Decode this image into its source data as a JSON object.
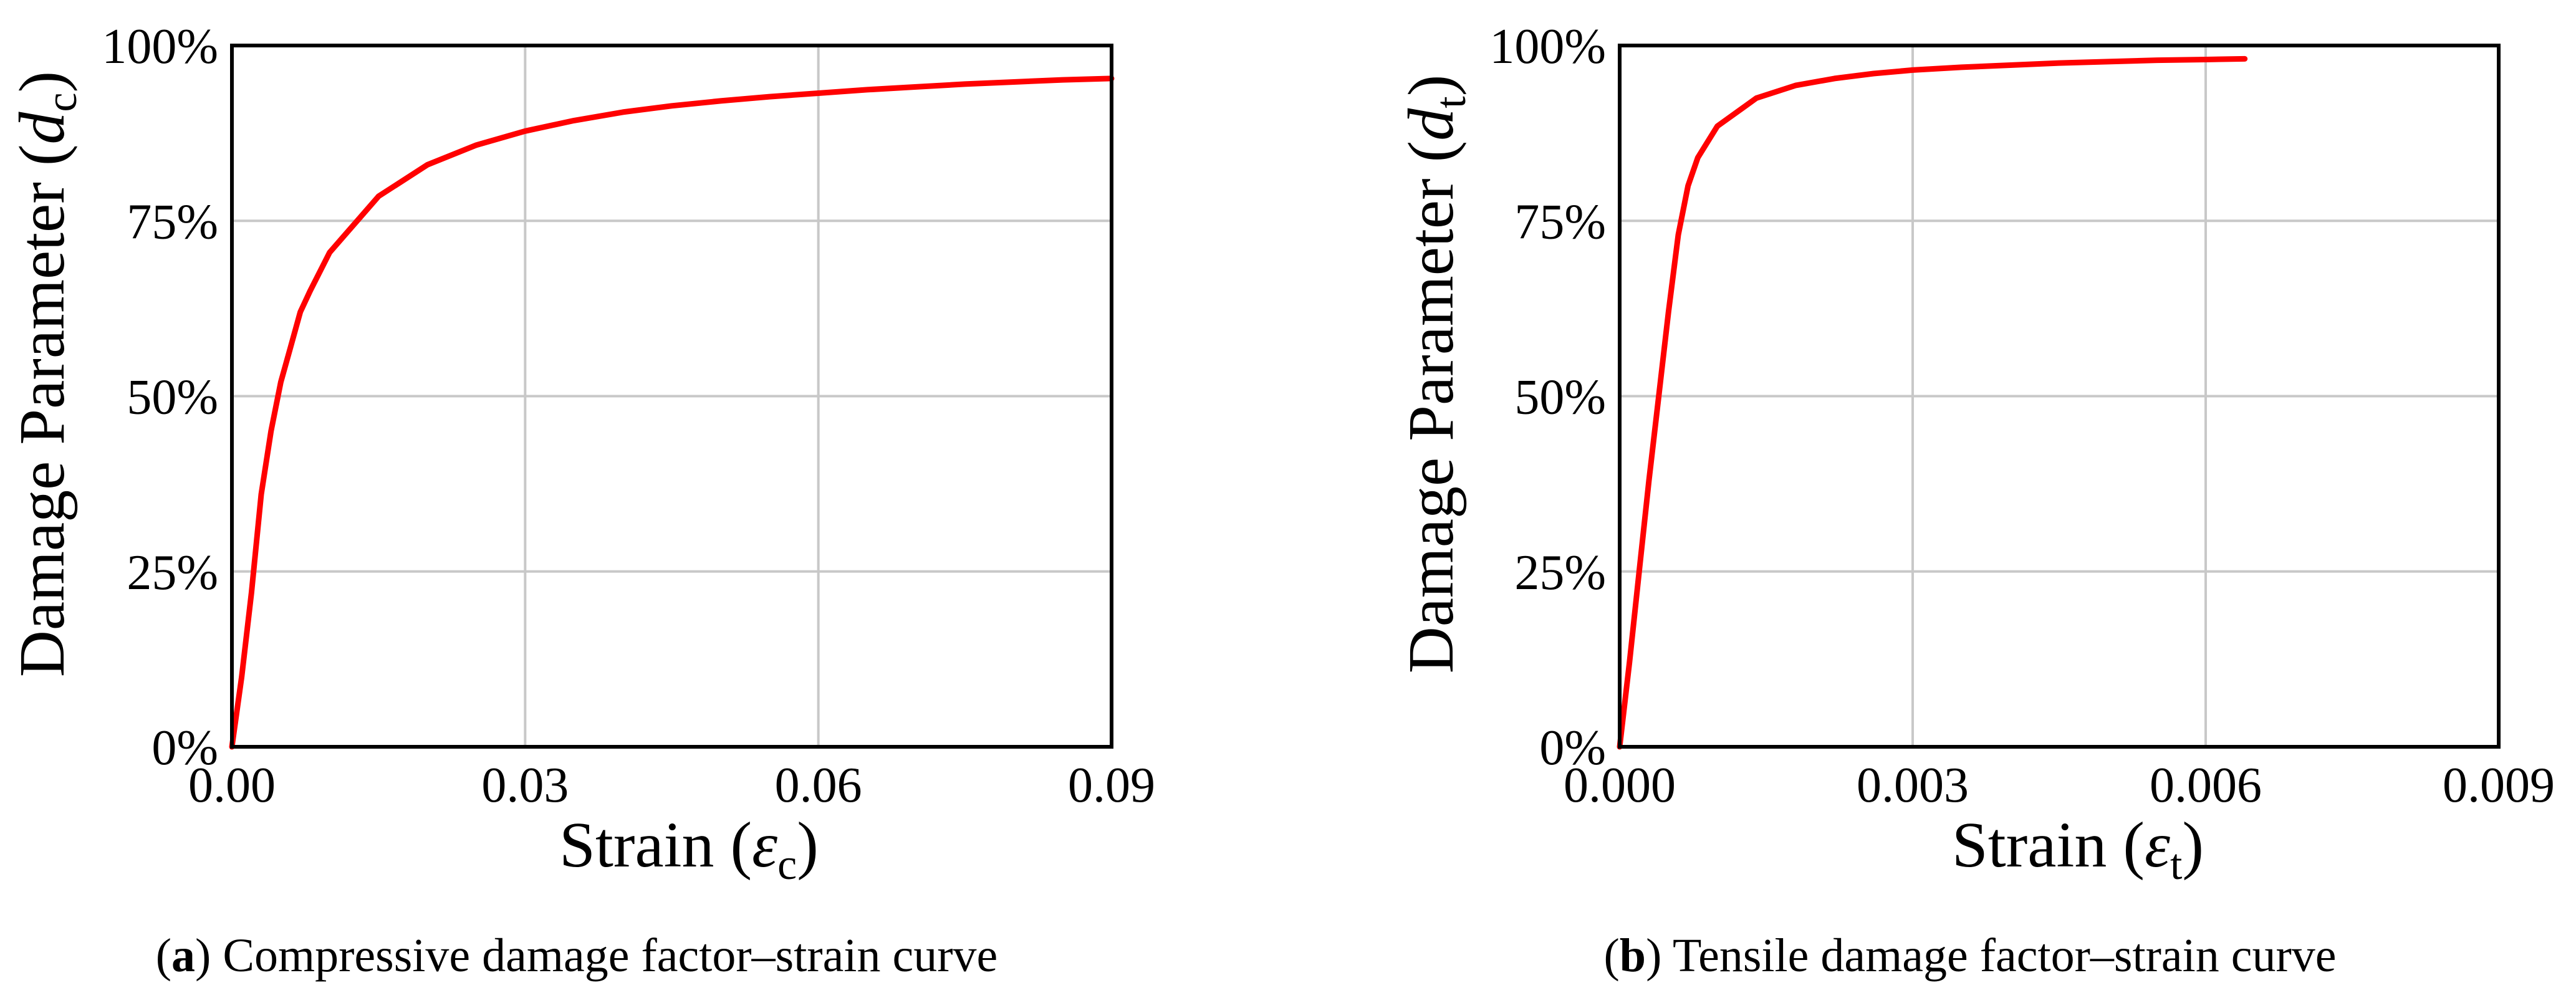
{
  "chart_data": [
    {
      "type": "line",
      "panel_letter": "a",
      "caption": "Compressive damage factor–strain curve",
      "ylabel": "Damage Parameter (",
      "ylabel_symbol": "d",
      "ylabel_subscript": "c",
      "ylabel_close": ")",
      "xlabel": "Strain (",
      "xlabel_symbol": "ε",
      "xlabel_subscript": "c",
      "xlabel_close": ")",
      "xlim": [
        0,
        0.09
      ],
      "ylim": [
        0,
        1
      ],
      "x_ticks": [
        0,
        0.03,
        0.06,
        0.09
      ],
      "x_tick_labels": [
        "0.00",
        "0.03",
        "0.06",
        "0.09"
      ],
      "y_ticks": [
        0,
        0.25,
        0.5,
        0.75,
        1.0
      ],
      "y_tick_labels": [
        "0%",
        "25%",
        "50%",
        "75%",
        "100%"
      ],
      "grid": true,
      "series": [
        {
          "name": "Compressive damage",
          "color": "#ff0000",
          "x": [
            0,
            0.001,
            0.002,
            0.003,
            0.004,
            0.005,
            0.006,
            0.007,
            0.008,
            0.01,
            0.015,
            0.02,
            0.025,
            0.03,
            0.035,
            0.04,
            0.045,
            0.05,
            0.055,
            0.06,
            0.065,
            0.07,
            0.075,
            0.08,
            0.085,
            0.09
          ],
          "y": [
            0,
            0.1,
            0.22,
            0.36,
            0.45,
            0.52,
            0.57,
            0.62,
            0.65,
            0.705,
            0.785,
            0.83,
            0.858,
            0.878,
            0.893,
            0.905,
            0.914,
            0.921,
            0.927,
            0.932,
            0.937,
            0.941,
            0.945,
            0.948,
            0.951,
            0.953
          ]
        }
      ]
    },
    {
      "type": "line",
      "panel_letter": "b",
      "caption": "Tensile damage factor–strain curve",
      "ylabel": "Damage Parameter (",
      "ylabel_symbol": "d",
      "ylabel_subscript": "t",
      "ylabel_close": ")",
      "xlabel": "Strain (",
      "xlabel_symbol": "ε",
      "xlabel_subscript": "t",
      "xlabel_close": ")",
      "xlim": [
        0,
        0.009
      ],
      "ylim": [
        0,
        1
      ],
      "x_ticks": [
        0,
        0.003,
        0.006,
        0.009
      ],
      "x_tick_labels": [
        "0.000",
        "0.003",
        "0.006",
        "0.009"
      ],
      "y_ticks": [
        0,
        0.25,
        0.5,
        0.75,
        1.0
      ],
      "y_tick_labels": [
        "0%",
        "25%",
        "50%",
        "75%",
        "100%"
      ],
      "grid": true,
      "series": [
        {
          "name": "Tensile damage",
          "color": "#ff0000",
          "x": [
            0,
            0.0001,
            0.0002,
            0.0003,
            0.0004,
            0.0005,
            0.0006,
            0.0007,
            0.0008,
            0.001,
            0.0014,
            0.0018,
            0.0022,
            0.0026,
            0.003,
            0.0035,
            0.004,
            0.0045,
            0.005,
            0.0055,
            0.006,
            0.0064
          ],
          "y": [
            0,
            0.12,
            0.25,
            0.38,
            0.5,
            0.62,
            0.73,
            0.8,
            0.84,
            0.885,
            0.925,
            0.943,
            0.953,
            0.96,
            0.965,
            0.969,
            0.972,
            0.975,
            0.977,
            0.979,
            0.98,
            0.981
          ]
        }
      ]
    }
  ]
}
